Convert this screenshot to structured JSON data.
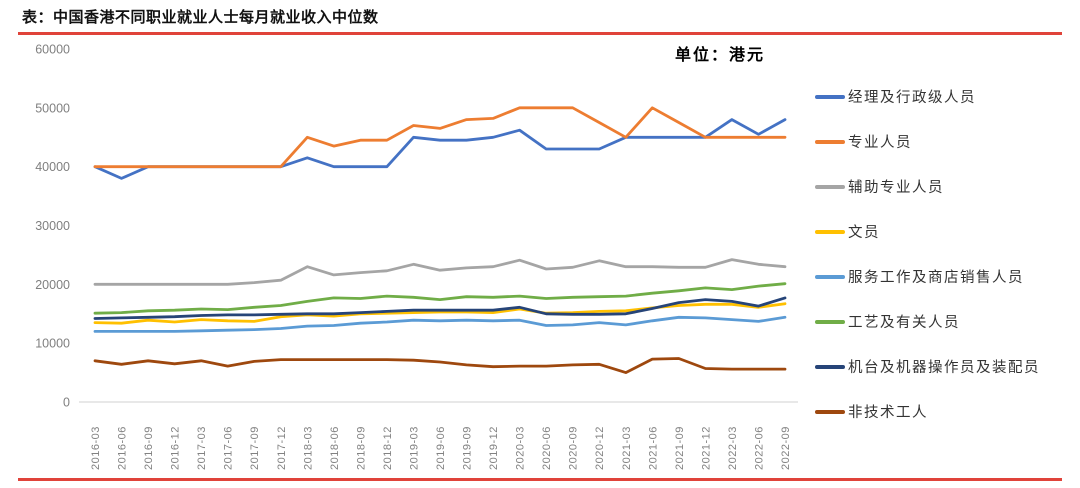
{
  "page": {
    "title": "表：中国香港不同职业就业人士每月就业收入中位数",
    "unit_label": "单位：港元",
    "accent_rule_color": "#E0433A"
  },
  "chart_data": {
    "type": "line",
    "title": "中国香港不同职业就业人士每月就业收入中位数",
    "unit": "港元",
    "x": [
      "2016-03",
      "2016-06",
      "2016-09",
      "2016-12",
      "2017-03",
      "2017-06",
      "2017-09",
      "2017-12",
      "2018-03",
      "2018-06",
      "2018-09",
      "2018-12",
      "2019-03",
      "2019-06",
      "2019-09",
      "2019-12",
      "2020-03",
      "2020-06",
      "2020-09",
      "2020-12",
      "2021-03",
      "2021-06",
      "2021-09",
      "2021-12",
      "2022-03",
      "2022-06",
      "2022-09"
    ],
    "ylim": [
      0,
      60000
    ],
    "yticks": [
      0,
      10000,
      20000,
      30000,
      40000,
      50000,
      60000
    ],
    "grid": false,
    "legend_position": "right",
    "axis_color": "#d9d9d9",
    "tick_color": "#7f7f7f",
    "series": [
      {
        "name": "经理及行政级人员",
        "color": "#4472C4",
        "values": [
          40000,
          38000,
          40000,
          40000,
          40000,
          40000,
          40000,
          40000,
          41500,
          40000,
          40000,
          40000,
          45000,
          44500,
          44500,
          45000,
          46200,
          43000,
          43000,
          43000,
          45000,
          45000,
          45000,
          45000,
          48000,
          45500,
          48000
        ]
      },
      {
        "name": "专业人员",
        "color": "#ED7D31",
        "values": [
          40000,
          40000,
          40000,
          40000,
          40000,
          40000,
          40000,
          40000,
          45000,
          43500,
          44500,
          44500,
          47000,
          46500,
          48000,
          48200,
          50000,
          50000,
          50000,
          47500,
          45000,
          50000,
          47500,
          45000,
          45000,
          45000,
          45000
        ]
      },
      {
        "name": "辅助专业人员",
        "color": "#A5A5A5",
        "values": [
          20000,
          20000,
          20000,
          20000,
          20000,
          20000,
          20300,
          20700,
          23000,
          21600,
          22000,
          22300,
          23400,
          22400,
          22800,
          23000,
          24100,
          22600,
          22900,
          24000,
          23000,
          23000,
          22900,
          22900,
          24200,
          23400,
          23000
        ]
      },
      {
        "name": "文员",
        "color": "#FFC000",
        "values": [
          13500,
          13400,
          13900,
          13600,
          14000,
          13800,
          13700,
          14500,
          14800,
          14600,
          15000,
          15100,
          15200,
          15300,
          15300,
          15200,
          15800,
          15100,
          15200,
          15400,
          15500,
          16000,
          16400,
          16600,
          16600,
          16100,
          16700
        ]
      },
      {
        "name": "服务工作及商店销售人员",
        "color": "#5B9BD5",
        "values": [
          12000,
          12000,
          12000,
          12000,
          12100,
          12200,
          12300,
          12500,
          12900,
          13000,
          13400,
          13600,
          13900,
          13800,
          13900,
          13800,
          13900,
          13000,
          13100,
          13500,
          13100,
          13800,
          14400,
          14300,
          14000,
          13700,
          14400
        ]
      },
      {
        "name": "工艺及有关人员",
        "color": "#70AD47",
        "values": [
          15100,
          15200,
          15500,
          15600,
          15800,
          15700,
          16100,
          16400,
          17100,
          17700,
          17600,
          18000,
          17800,
          17400,
          17900,
          17800,
          18000,
          17600,
          17800,
          17900,
          18000,
          18500,
          18900,
          19400,
          19100,
          19700,
          20100
        ]
      },
      {
        "name": "机台及机器操作员及装配员",
        "color": "#264478",
        "values": [
          14200,
          14300,
          14400,
          14500,
          14700,
          14800,
          14800,
          14900,
          15000,
          15000,
          15200,
          15400,
          15600,
          15600,
          15600,
          15600,
          16100,
          15000,
          14900,
          14900,
          15000,
          15900,
          16900,
          17400,
          17100,
          16300,
          17700
        ]
      },
      {
        "name": "非技术工人",
        "color": "#9E480E",
        "values": [
          7000,
          6400,
          7000,
          6500,
          7000,
          6100,
          6900,
          7200,
          7200,
          7200,
          7200,
          7200,
          7100,
          6800,
          6300,
          6000,
          6100,
          6100,
          6300,
          6400,
          5000,
          7300,
          7400,
          5700,
          5600,
          5600,
          5600
        ]
      }
    ]
  }
}
